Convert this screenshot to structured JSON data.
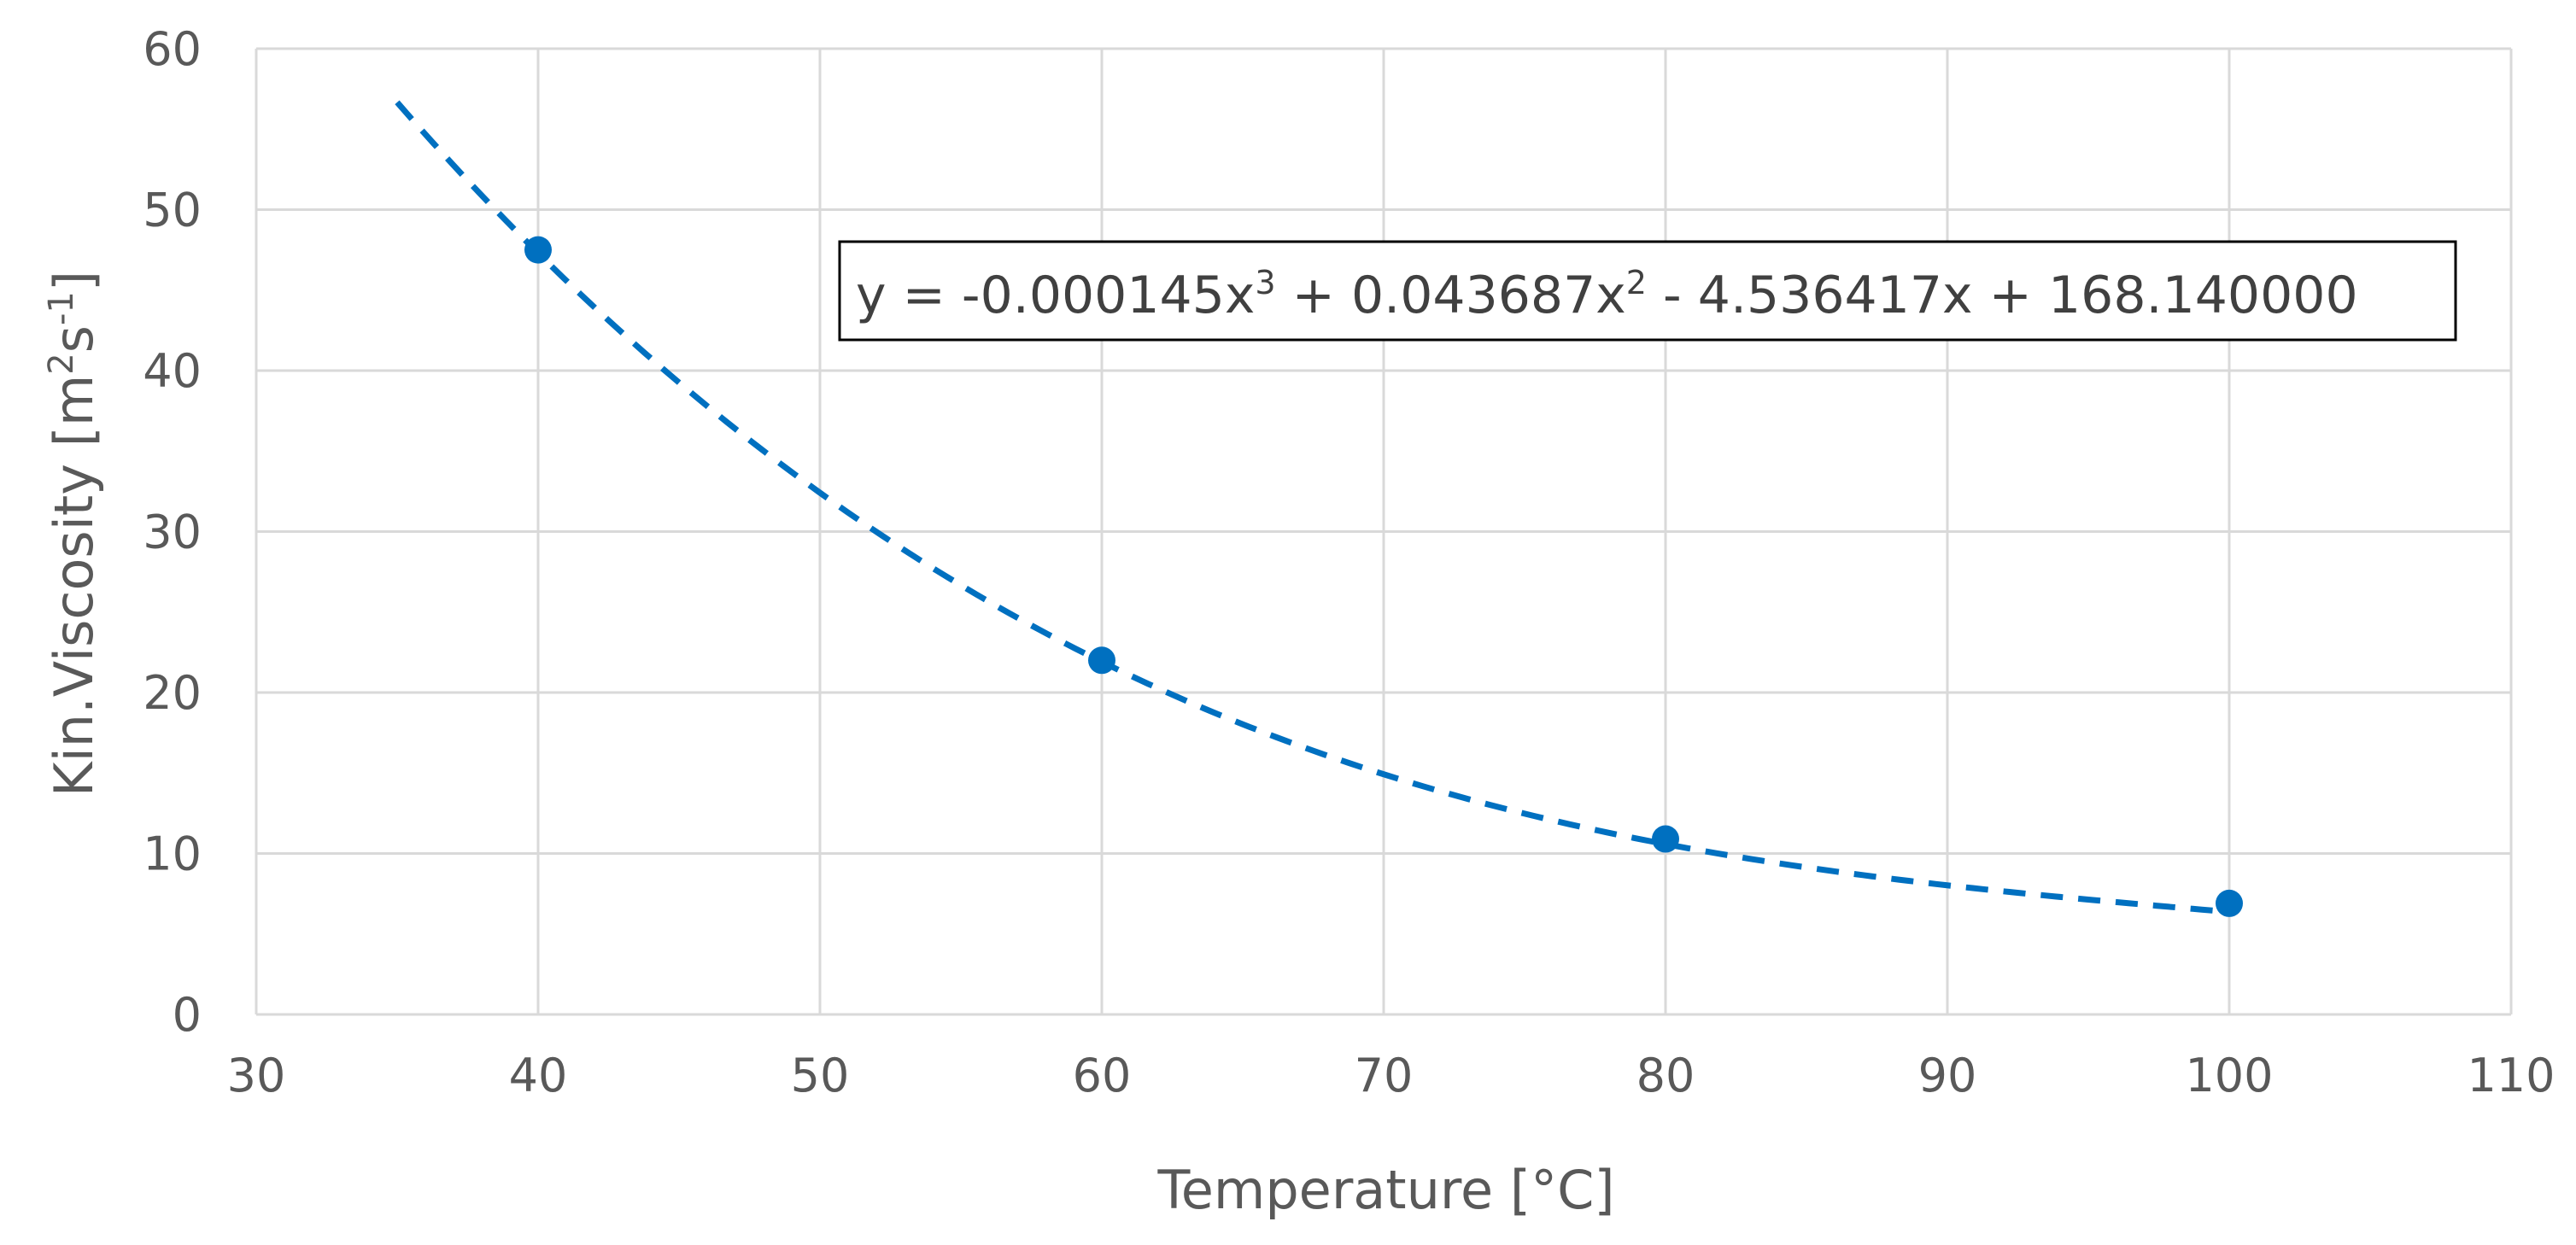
{
  "chart_data": {
    "type": "scatter",
    "title": "",
    "xlabel": "Temperature [°C]",
    "ylabel": {
      "main": "Kin.Viscosity [m",
      "sup1": "2",
      "mid": "s",
      "sup2": "-1",
      "end": "]"
    },
    "xlim": [
      30,
      110
    ],
    "ylim": [
      0,
      60
    ],
    "xticks": [
      30,
      40,
      50,
      60,
      70,
      80,
      90,
      100,
      110
    ],
    "yticks": [
      0,
      10,
      20,
      30,
      40,
      50,
      60
    ],
    "grid": true,
    "series": [
      {
        "name": "Kin.Viscosity",
        "x": [
          40,
          60,
          80,
          100
        ],
        "y": [
          47.5,
          22.0,
          10.9,
          6.9
        ],
        "color": "#0070C0"
      }
    ],
    "trendline": {
      "type": "polynomial",
      "order": 3,
      "x_range": [
        35,
        100
      ],
      "coefficients": [
        -0.000145,
        0.043687,
        -4.536417,
        168.14
      ],
      "color": "#0070C0",
      "style": "dashed"
    },
    "equation_label": {
      "prefix": "y = -0.000145x",
      "sup1": "3",
      "mid1": " + 0.043687x",
      "sup2": "2",
      "tail": " - 4.536417x + 168.140000"
    }
  },
  "colors": {
    "grid": "#D9D9D9",
    "tick_text": "#595959",
    "series": "#0070C0",
    "equation_border": "#000000"
  }
}
